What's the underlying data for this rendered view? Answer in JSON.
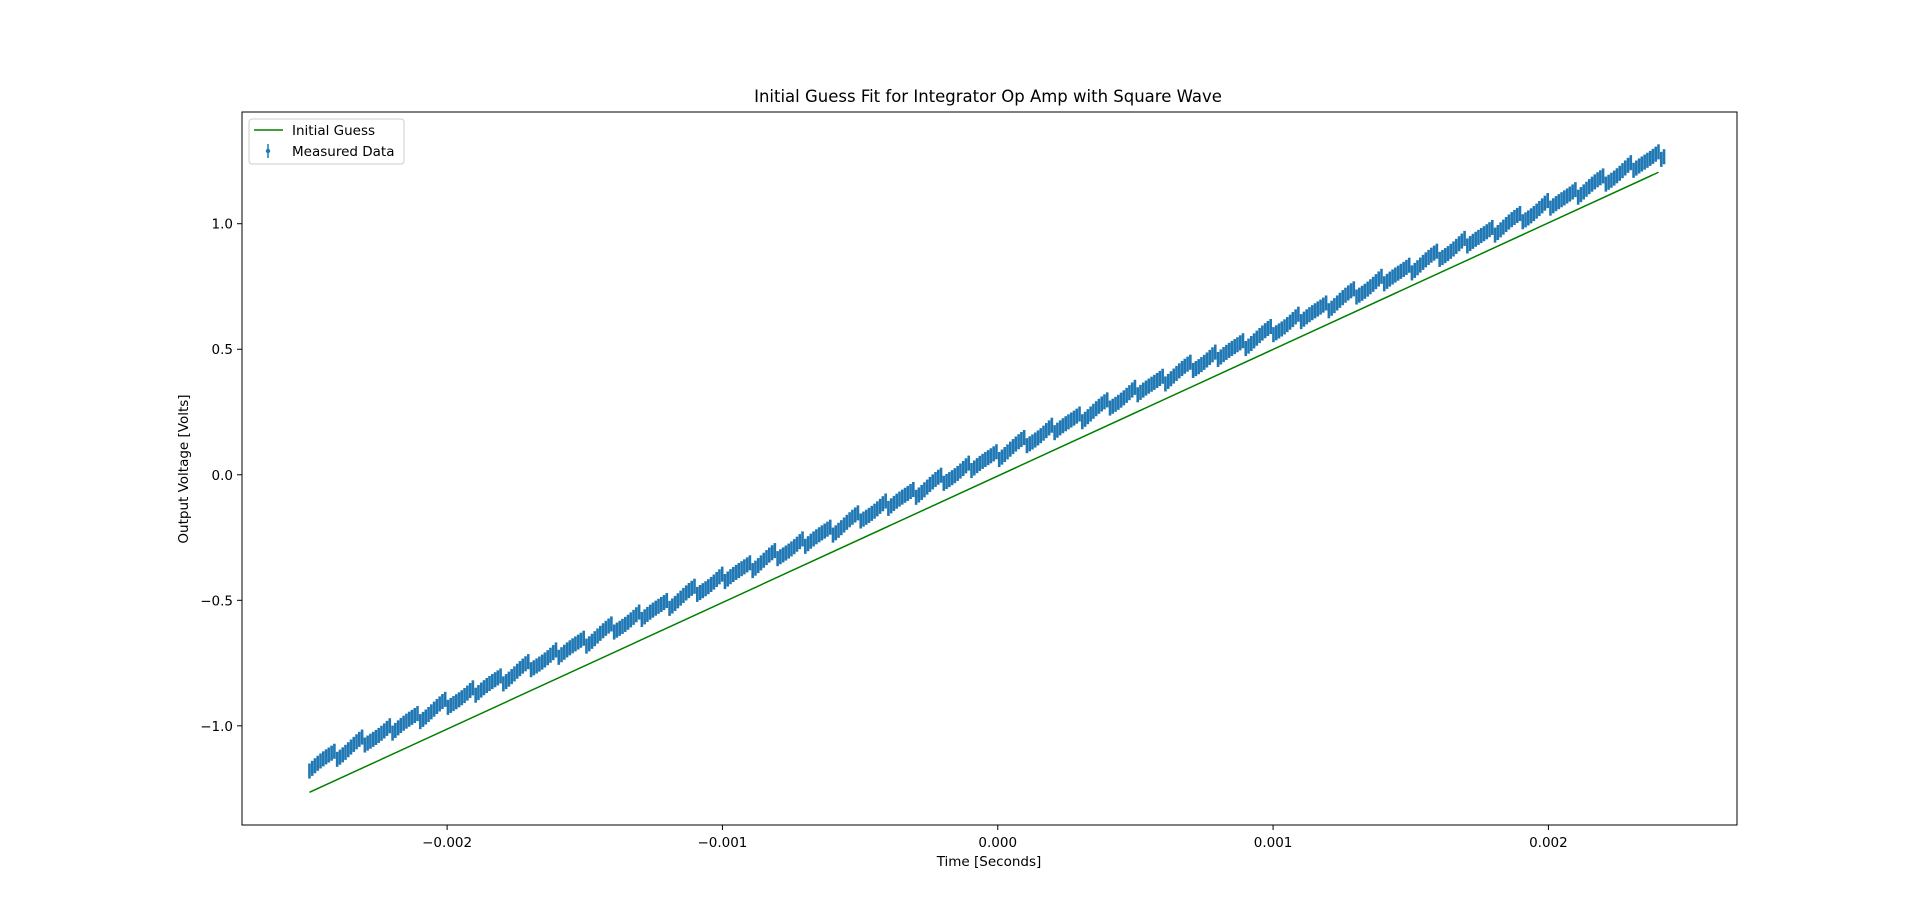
{
  "chart_data": {
    "type": "scatter",
    "title": "Initial Guess Fit for Integrator Op Amp with Square Wave",
    "xlabel": "Time [Seconds]",
    "ylabel": "Output Voltage [Volts]",
    "xlim": [
      -0.002745,
      0.002685
    ],
    "ylim": [
      -1.395,
      1.445
    ],
    "xticks": [
      -0.002,
      -0.001,
      0.0,
      0.001,
      0.002
    ],
    "xtick_labels": [
      "−0.002",
      "−0.001",
      "0.000",
      "0.001",
      "0.002"
    ],
    "yticks": [
      -1.0,
      -0.5,
      0.0,
      0.5,
      1.0
    ],
    "ytick_labels": [
      "−1.0",
      "−0.5",
      "0.0",
      "0.5",
      "1.0"
    ],
    "grid": false,
    "legend": {
      "placement": "upper left",
      "entries": [
        "Initial Guess",
        "Measured Data"
      ]
    },
    "series": [
      {
        "name": "Initial Guess",
        "kind": "line",
        "color": "#008000",
        "x": [
          -0.0025,
          0.0024
        ],
        "y": [
          -1.265,
          1.205
        ]
      },
      {
        "name": "Measured Data",
        "kind": "errorbar",
        "color": "#1f77b4",
        "x_start": -0.0025,
        "x_end": 0.00242,
        "y_start": -1.16,
        "y_end": 1.28,
        "point_count": 490,
        "y_error": 0.03,
        "step_period": 0.0001,
        "step_amplitude": 0.02
      }
    ]
  }
}
